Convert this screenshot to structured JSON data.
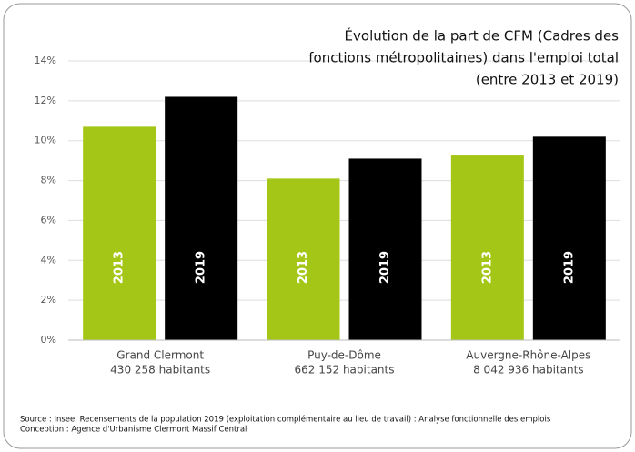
{
  "chart_data": {
    "type": "bar",
    "title": [
      "Évolution de la part de CFM (Cadres des",
      "fonctions métropolitaines) dans l'emploi total",
      "(entre 2013 et 2019)"
    ],
    "categories": [
      [
        "Grand Clermont",
        "430 258 habitants"
      ],
      [
        "Puy-de-Dôme",
        "662 152 habitants"
      ],
      [
        "Auvergne-Rhône-Alpes",
        "8 042 936 habitants"
      ]
    ],
    "series": [
      {
        "name": "2013",
        "color": "#a4c617",
        "values": [
          10.7,
          8.1,
          9.3
        ]
      },
      {
        "name": "2019",
        "color": "#000000",
        "values": [
          12.2,
          9.1,
          10.2
        ]
      }
    ],
    "ylim": [
      0,
      14
    ],
    "yticks": [
      {
        "value": 0,
        "label": "0%"
      },
      {
        "value": 2,
        "label": "2%"
      },
      {
        "value": 4,
        "label": "4%"
      },
      {
        "value": 6,
        "label": "6%"
      },
      {
        "value": 8,
        "label": "8%"
      },
      {
        "value": 10,
        "label": "10%"
      },
      {
        "value": 12,
        "label": "12%"
      },
      {
        "value": 14,
        "label": "14%"
      }
    ],
    "grid": true,
    "source": [
      "Source : Insee, Recensements de la population 2019 (exploitation complémentaire au lieu de travail) : Analyse fonctionnelle des emplois",
      "Conception : Agence d'Urbanisme Clermont Massif Central"
    ]
  }
}
